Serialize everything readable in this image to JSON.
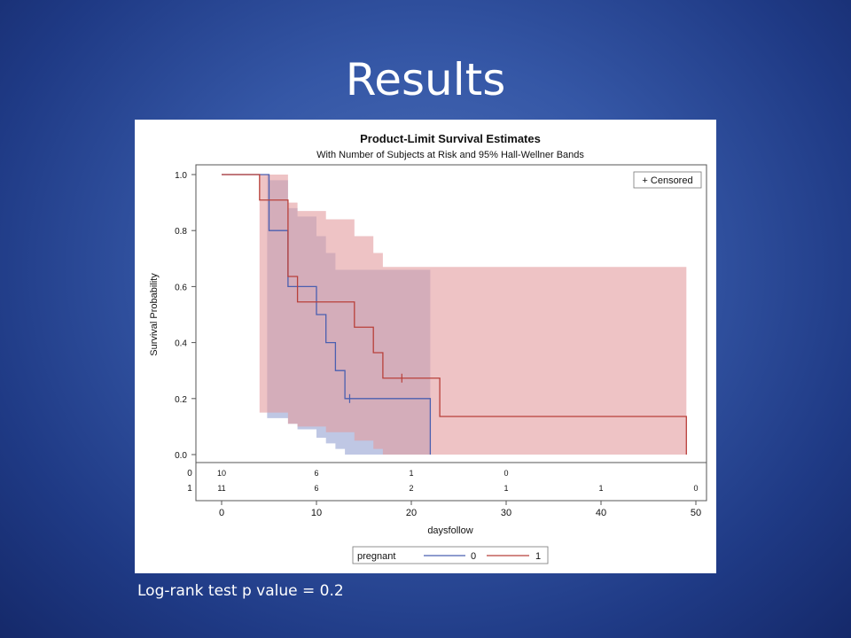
{
  "slide": {
    "title": "Results",
    "footnote": "Log-rank test p value = 0.2"
  },
  "colors": {
    "group0_line": "#4a5fb0",
    "group0_band": "#aab4db",
    "group1_line": "#b8403a",
    "group1_band": "#e29b9e",
    "overlap_band": "#b88a9e"
  },
  "chart_data": {
    "type": "line",
    "title": "Product-Limit Survival Estimates",
    "subtitle": "With Number of Subjects at Risk and 95% Hall-Wellner Bands",
    "xlabel": "daysfollow",
    "ylabel": "Survival Probability",
    "xlim": [
      0,
      50
    ],
    "ylim": [
      0,
      1
    ],
    "xticks": [
      "0",
      "10",
      "20",
      "30",
      "40",
      "50"
    ],
    "yticks": [
      "0.0",
      "0.2",
      "0.4",
      "0.6",
      "0.8",
      "1.0"
    ],
    "grid": false,
    "censor_legend": "+ Censored",
    "legend": {
      "title": "pregnant",
      "position": "bottom",
      "entries": [
        "0",
        "1"
      ]
    },
    "series": [
      {
        "name": "0",
        "x": [
          0,
          5,
          7,
          10,
          11,
          12,
          13,
          22
        ],
        "y": [
          1.0,
          0.8,
          0.6,
          0.5,
          0.4,
          0.3,
          0.2,
          0.0
        ],
        "censored_x": [
          13.5
        ],
        "censored_y": [
          0.2
        ],
        "band_x": [
          4.8,
          5,
          7,
          8,
          10,
          11,
          12,
          13,
          22
        ],
        "band_upper": [
          1.0,
          0.98,
          0.88,
          0.85,
          0.78,
          0.72,
          0.66,
          0.66,
          0.66
        ],
        "band_lower": [
          0.13,
          0.13,
          0.11,
          0.09,
          0.06,
          0.04,
          0.02,
          0.0,
          0.0
        ]
      },
      {
        "name": "1",
        "x": [
          0,
          4,
          7,
          8,
          14,
          16,
          17,
          23,
          49
        ],
        "y": [
          1.0,
          0.909,
          0.636,
          0.545,
          0.455,
          0.364,
          0.273,
          0.136,
          0.0
        ],
        "censored_x": [
          19
        ],
        "censored_y": [
          0.273
        ],
        "band_x": [
          4,
          7,
          8,
          11,
          14,
          16,
          17,
          23,
          49
        ],
        "band_upper": [
          1.0,
          0.9,
          0.87,
          0.84,
          0.78,
          0.72,
          0.67,
          0.67,
          0.67
        ],
        "band_lower": [
          0.15,
          0.11,
          0.1,
          0.08,
          0.05,
          0.02,
          0.0,
          0.0,
          0.0
        ]
      }
    ],
    "at_risk": {
      "rows": [
        {
          "label": "0",
          "x": [
            0,
            10,
            20,
            30
          ],
          "values": [
            "10",
            "6",
            "1",
            "0"
          ]
        },
        {
          "label": "1",
          "x": [
            0,
            10,
            20,
            30,
            40,
            50
          ],
          "values": [
            "11",
            "6",
            "2",
            "1",
            "1",
            "0"
          ]
        }
      ]
    }
  }
}
